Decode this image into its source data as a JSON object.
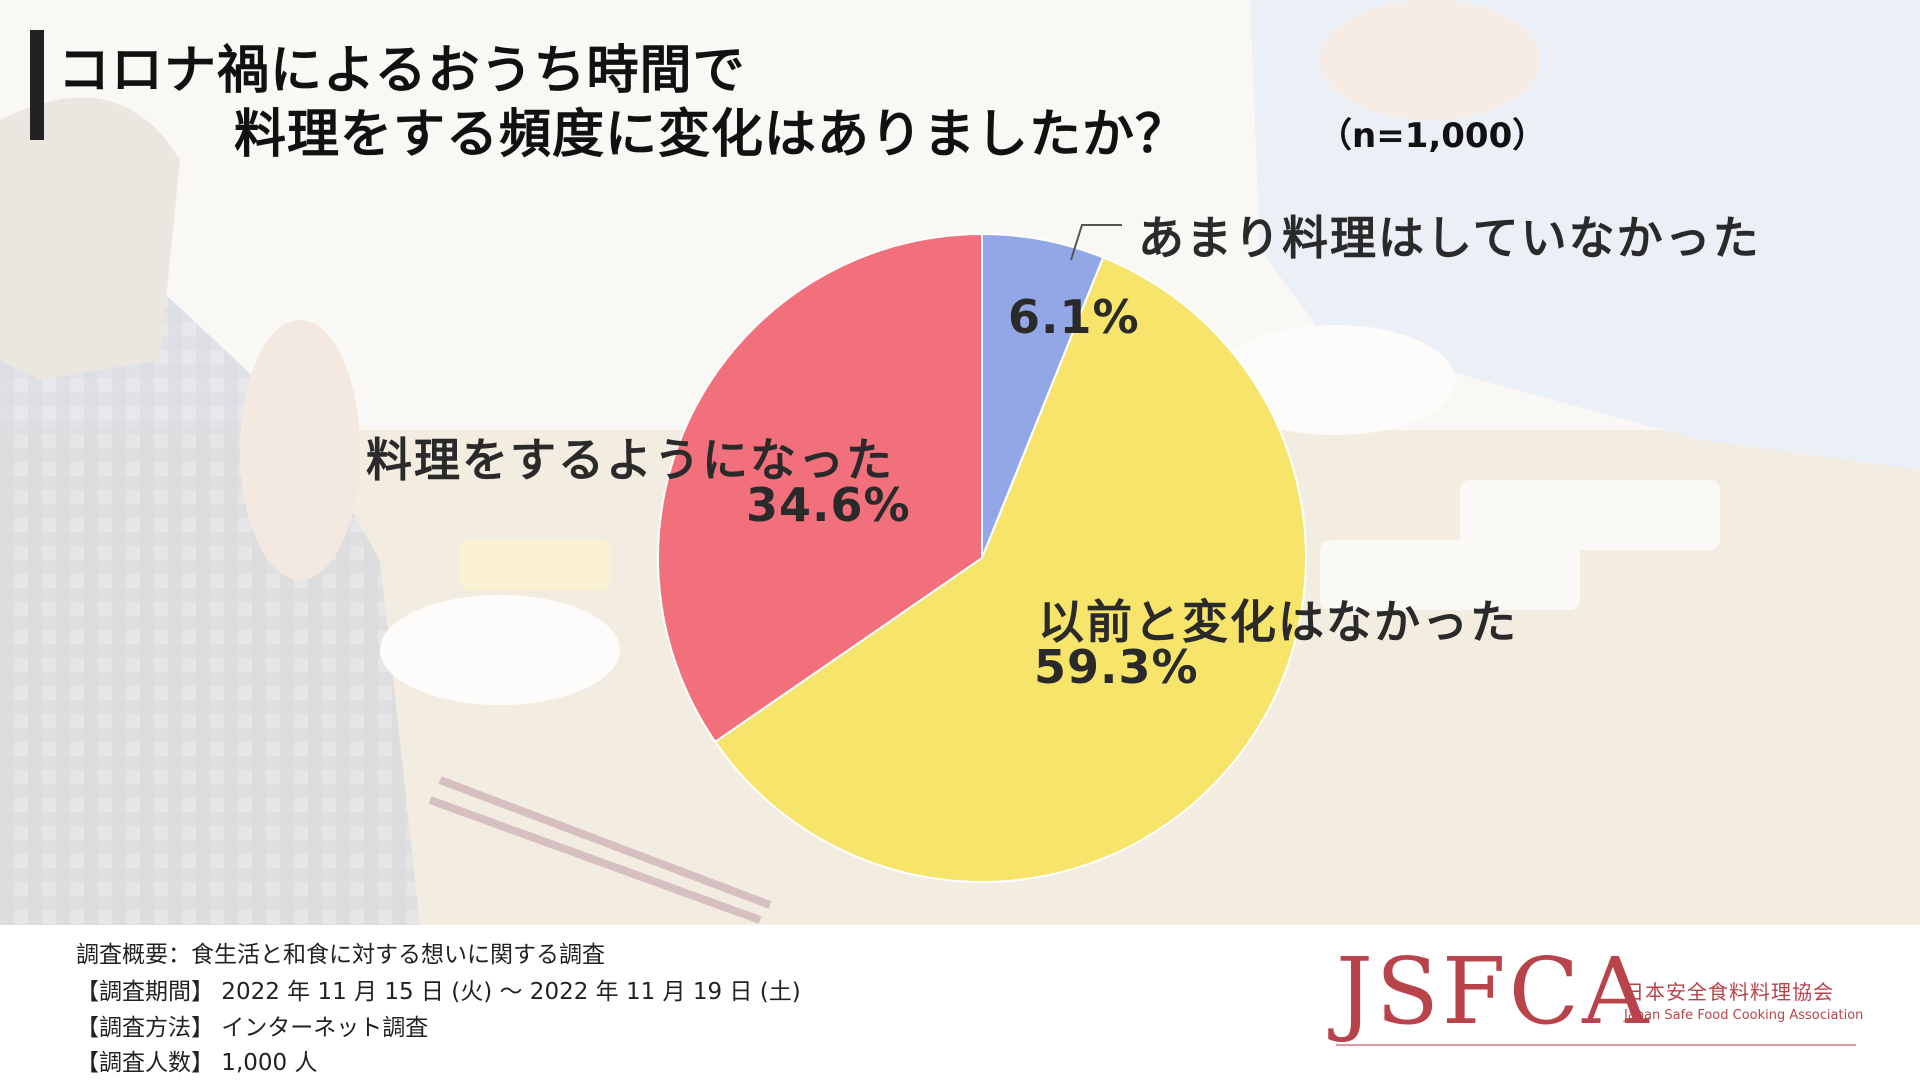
{
  "title": {
    "line1": "コロナ禍によるおうち時間で",
    "line2": "料理をする頻度に変化はありましたか？",
    "sample": "（n=1,000）"
  },
  "chart_data": {
    "type": "pie",
    "start_angle_deg": 0,
    "direction": "clockwise",
    "slices": [
      {
        "label": "あまり料理はしていなかった",
        "value": 6.1,
        "value_label": "6.1%",
        "color": "#93a6e6"
      },
      {
        "label": "以前と変化はなかった",
        "value": 59.3,
        "value_label": "59.3%",
        "color": "#f7e46a"
      },
      {
        "label": "料理をするようになった",
        "value": 34.6,
        "value_label": "34.6%",
        "color": "#f2707c"
      }
    ]
  },
  "survey": {
    "summary": "調査概要：食生活と和食に対する想いに関する調査",
    "period": "【調査期間】 2022 年 11 月 15 日 (火) ～ 2022 年 11 月 19 日 (土)",
    "method": "【調査方法】 インターネット調査",
    "respondents": "【調査人数】 1,000 人"
  },
  "logo": {
    "main": "JSFCA",
    "jp": "日本安全食料料理協会",
    "en": "Japan Safe Food Cooking Association"
  },
  "colors": {
    "accent": "#b9434a",
    "title_bar": "#222222"
  }
}
